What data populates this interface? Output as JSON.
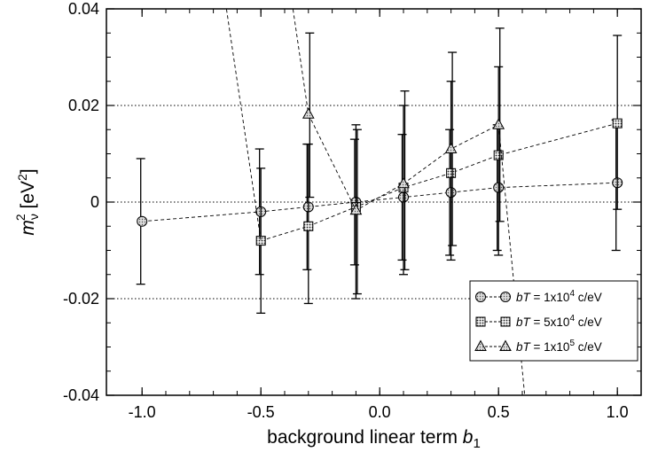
{
  "chart_data": {
    "type": "scatter",
    "xlabel": {
      "main": "background linear term ",
      "var": "b",
      "sub": "1"
    },
    "ylabel": {
      "var": "m",
      "sub": "ν",
      "sup": "2",
      "unit_pre": " [eV",
      "unit_sup": "2",
      "unit_post": "]"
    },
    "xlim": [
      -1.15,
      1.1
    ],
    "ylim": [
      -0.04,
      0.04
    ],
    "x_ticks": [
      {
        "value": -1.0,
        "label": "-1.0"
      },
      {
        "value": -0.5,
        "label": "-0.5"
      },
      {
        "value": 0.0,
        "label": "0.0"
      },
      {
        "value": 0.5,
        "label": "0.5"
      },
      {
        "value": 1.0,
        "label": "1.0"
      }
    ],
    "y_ticks": [
      {
        "value": -0.04,
        "label": "-0.04"
      },
      {
        "value": -0.02,
        "label": "-0.02"
      },
      {
        "value": 0.0,
        "label": "0"
      },
      {
        "value": 0.02,
        "label": "0.02"
      },
      {
        "value": 0.04,
        "label": "0.04"
      }
    ],
    "gridlines_y": [
      -0.02,
      0.0,
      0.02
    ],
    "legend_position": "bottom-right",
    "series": [
      {
        "name": {
          "pre": "bT",
          "mid": " = 1x10",
          "sup": "4",
          "post": " c/eV"
        },
        "marker": "circle",
        "x": [
          -1.0,
          -0.5,
          -0.3,
          -0.1,
          0.1,
          0.3,
          0.5,
          1.0
        ],
        "y": [
          -0.004,
          -0.002,
          -0.001,
          0.0,
          0.001,
          0.002,
          0.003,
          0.004
        ],
        "err_low": [
          -0.017,
          -0.015,
          -0.014,
          -0.013,
          -0.012,
          -0.011,
          -0.01,
          -0.01
        ],
        "err_high": [
          0.009,
          0.011,
          0.012,
          0.013,
          0.014,
          0.015,
          0.016,
          0.017
        ]
      },
      {
        "name": {
          "pre": "bT",
          "mid": " = 5x10",
          "sup": "4",
          "post": " c/eV"
        },
        "marker": "square",
        "x": [
          -0.5,
          -0.3,
          -0.1,
          0.1,
          0.3,
          0.5,
          1.0
        ],
        "y": [
          -0.008,
          -0.005,
          -0.001,
          0.003,
          0.006,
          0.0097,
          0.0163
        ],
        "err_low": [
          -0.023,
          -0.021,
          -0.02,
          -0.015,
          -0.012,
          -0.011,
          -0.0015
        ],
        "err_high": [
          0.007,
          0.012,
          0.016,
          0.02,
          0.025,
          0.028,
          0.0345
        ]
      },
      {
        "name": {
          "pre": "bT",
          "mid": " = 1x10",
          "sup": "5",
          "post": " c/eV"
        },
        "marker": "triangle",
        "x": [
          -0.3,
          -0.1,
          0.1,
          0.3,
          0.5
        ],
        "y": [
          0.0182,
          -0.0017,
          0.0038,
          0.011,
          0.016
        ],
        "err_low": [
          0.001,
          -0.019,
          -0.014,
          -0.009,
          -0.004
        ],
        "err_high": [
          0.035,
          0.015,
          0.023,
          0.031,
          0.036
        ],
        "extra_lines": [
          {
            "x": [
              -0.66,
              -0.5
            ],
            "y": [
              0.045,
              -0.008
            ]
          },
          {
            "x": [
              -0.38,
              -0.3
            ],
            "y": [
              0.045,
              0.0182
            ]
          },
          {
            "x": [
              0.5,
              0.62
            ],
            "y": [
              0.016,
              -0.045
            ]
          }
        ]
      }
    ]
  }
}
